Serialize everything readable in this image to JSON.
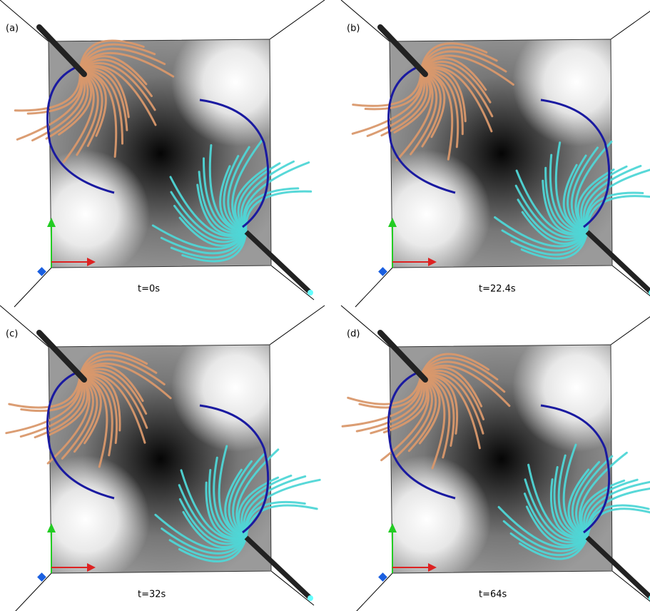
{
  "panels": [
    {
      "label": "(a)",
      "time": "t=0s"
    },
    {
      "label": "(b)",
      "time": "t=22.4s"
    },
    {
      "label": "(c)",
      "time": "t=32s"
    },
    {
      "label": "(d)",
      "time": "t=64s"
    }
  ]
}
